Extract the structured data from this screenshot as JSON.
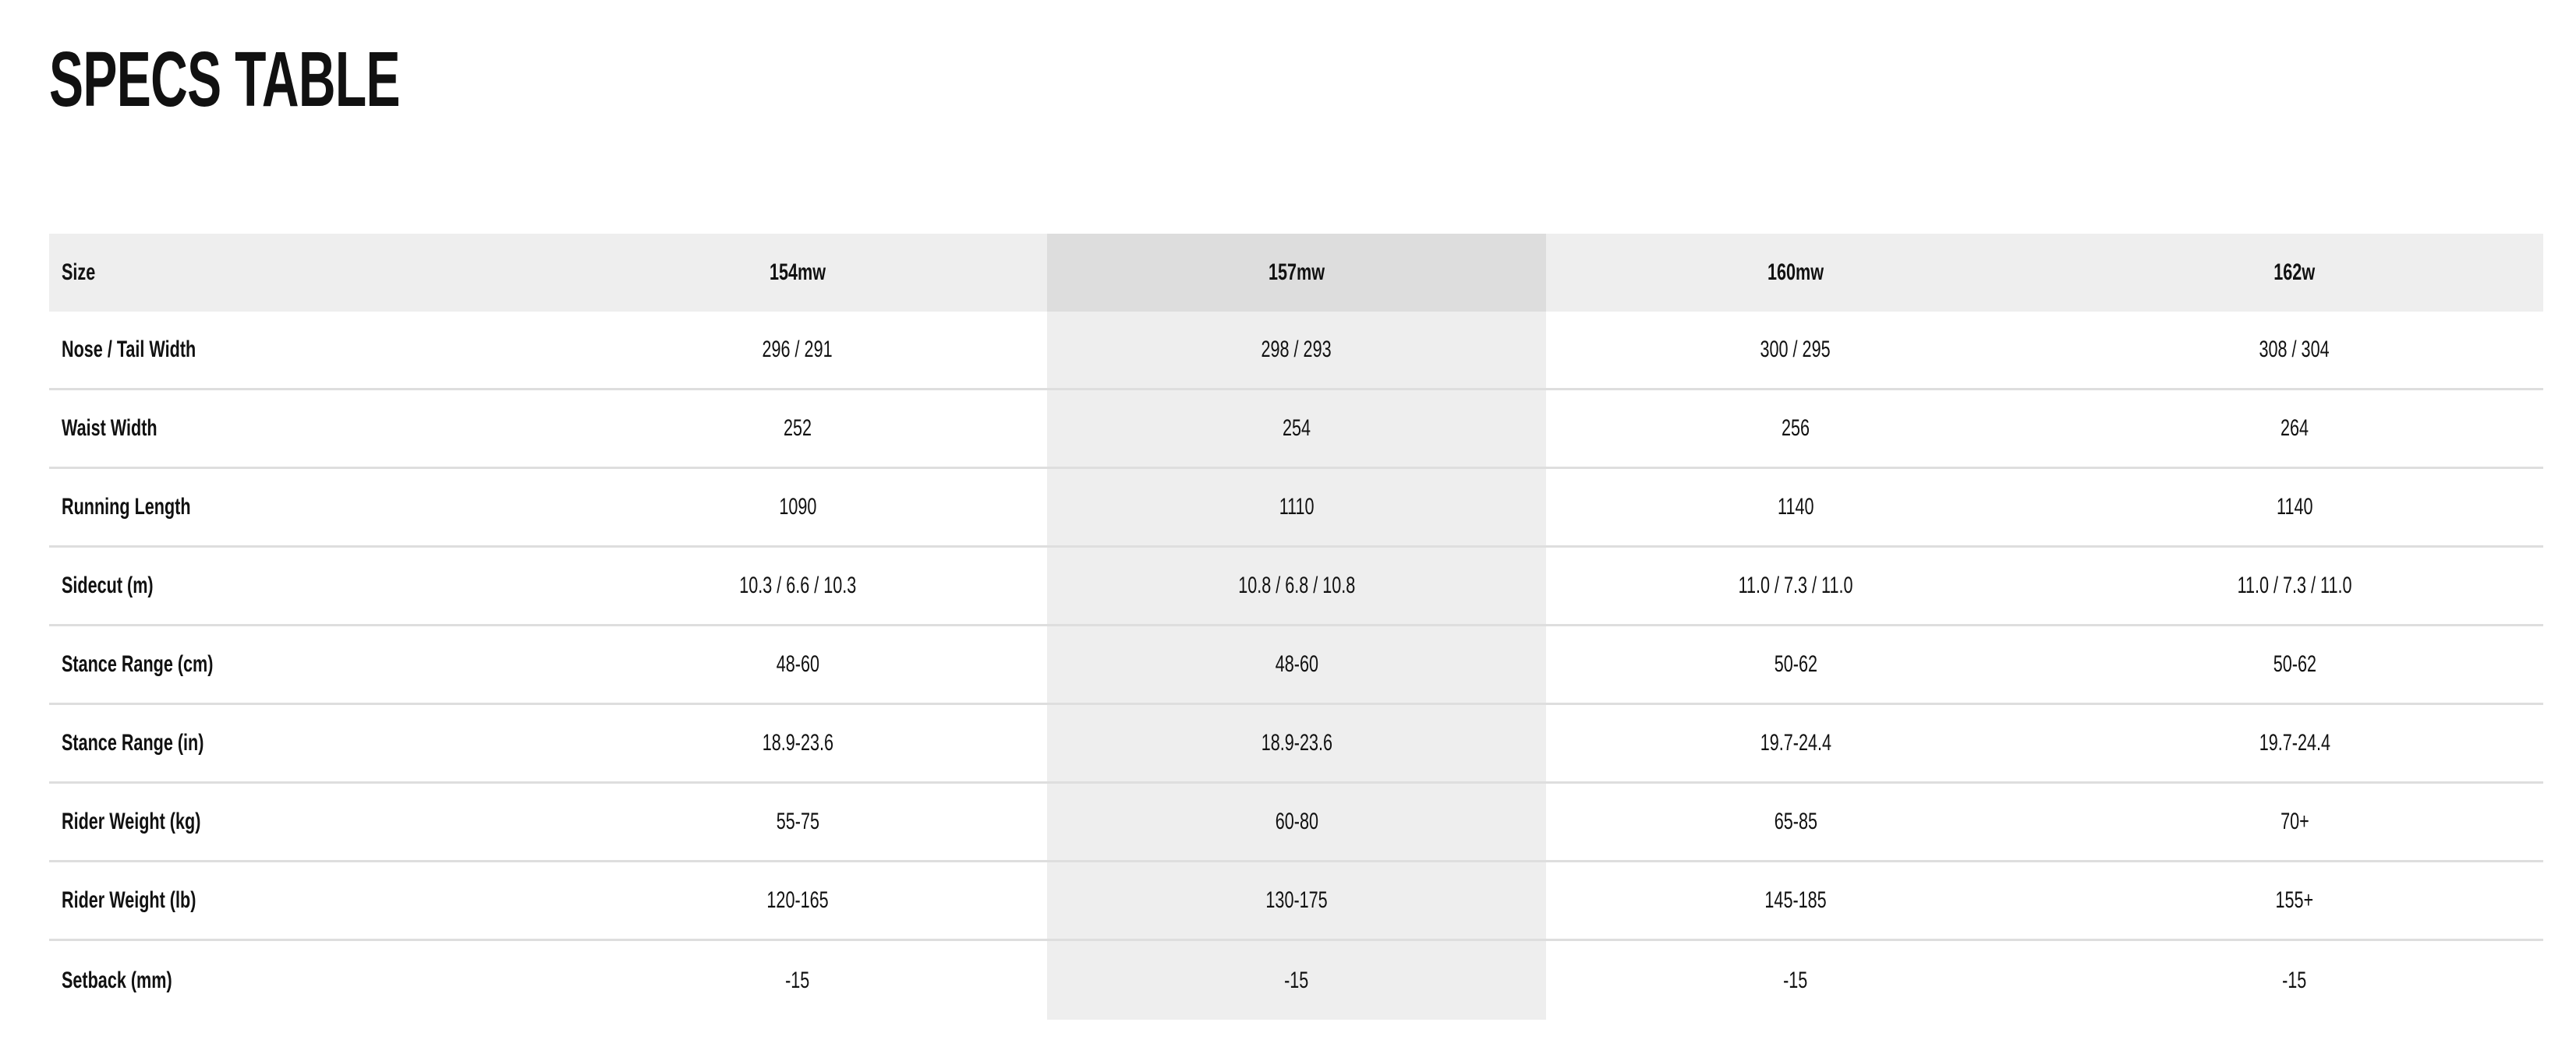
{
  "title": "SPECS TABLE",
  "highlighted_column": "157mw",
  "colors": {
    "header_bg": "#eeeeee",
    "highlight_header_bg": "#dddddd",
    "highlight_column_bg": "#eeeeee",
    "divider": "#dedede"
  },
  "table": {
    "header": {
      "label": "Size",
      "columns": [
        "154mw",
        "157mw",
        "160mw",
        "162w"
      ]
    },
    "rows": [
      {
        "label": "Nose / Tail Width",
        "values": [
          "296 / 291",
          "298 / 293",
          "300 / 295",
          "308 / 304"
        ]
      },
      {
        "label": "Waist Width",
        "values": [
          "252",
          "254",
          "256",
          "264"
        ]
      },
      {
        "label": "Running Length",
        "values": [
          "1090",
          "1110",
          "1140",
          "1140"
        ]
      },
      {
        "label": "Sidecut (m)",
        "values": [
          "10.3 / 6.6 / 10.3",
          "10.8 / 6.8 / 10.8",
          "11.0 / 7.3 / 11.0",
          "11.0 / 7.3 / 11.0"
        ]
      },
      {
        "label": "Stance Range (cm)",
        "values": [
          "48-60",
          "48-60",
          "50-62",
          "50-62"
        ]
      },
      {
        "label": "Stance Range (in)",
        "values": [
          "18.9-23.6",
          "18.9-23.6",
          "19.7-24.4",
          "19.7-24.4"
        ]
      },
      {
        "label": "Rider Weight (kg)",
        "values": [
          "55-75",
          "60-80",
          "65-85",
          "70+"
        ]
      },
      {
        "label": "Rider Weight (lb)",
        "values": [
          "120-165",
          "130-175",
          "145-185",
          "155+"
        ]
      },
      {
        "label": "Setback (mm)",
        "values": [
          "-15",
          "-15",
          "-15",
          "-15"
        ]
      }
    ]
  }
}
